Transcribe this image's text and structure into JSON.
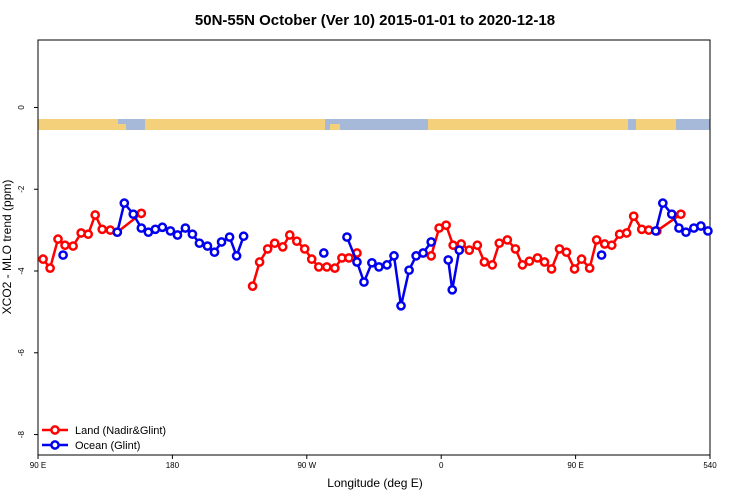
{
  "chart_data": {
    "type": "line",
    "title": "50N-55N October (Ver 10)   2015-01-01 to 2020-12-18",
    "x_label": "Longitude (deg E)",
    "y_label": "XCO2 - MLO trend (ppm)",
    "xlim": [
      90,
      540
    ],
    "ylim": [
      -8.5,
      1.65
    ],
    "xticks": [
      {
        "value": 90,
        "label": "90 E"
      },
      180,
      {
        "value": 270,
        "label": "90 W"
      },
      {
        "value": 360,
        "label": "0"
      },
      {
        "value": 450,
        "label": "90 E"
      },
      540
    ],
    "yticks": [
      0,
      -2,
      -4,
      -6,
      -8
    ],
    "grid": false,
    "legend": "bottom-left",
    "series": [
      {
        "name": "Land (Nadir&Glint)",
        "color": "#ff0000",
        "x": [
          93.4,
          98.1,
          103.4,
          108.1,
          113.5,
          118.9,
          123.6,
          128.3,
          133.0,
          138.4,
          143.1,
          159.2,
          null,
          233.7,
          238.4,
          243.8,
          248.5,
          253.9,
          258.6,
          263.3,
          268.6,
          273.3,
          278.0,
          283.4,
          288.8,
          293.5,
          298.2,
          303.6,
          null,
          353.3,
          358.6,
          363.3,
          368.0,
          373.4,
          378.8,
          384.2,
          388.9,
          394.2,
          398.9,
          404.3,
          409.7,
          414.4,
          419.1,
          424.5,
          429.2,
          433.9,
          439.2,
          443.9,
          449.3,
          454.0,
          459.4,
          464.1,
          469.5,
          474.2,
          479.5,
          484.2,
          488.9,
          494.3,
          499.0,
          504.4,
          520.5
        ],
        "values": [
          -3.71,
          -3.93,
          -3.22,
          -3.37,
          -3.39,
          -3.07,
          -3.1,
          -2.63,
          -2.98,
          -3.0,
          -3.05,
          -2.59,
          null,
          -4.37,
          -3.78,
          -3.46,
          -3.32,
          -3.41,
          -3.12,
          -3.27,
          -3.46,
          -3.71,
          -3.9,
          -3.9,
          -3.93,
          -3.68,
          -3.68,
          -3.56,
          null,
          -3.63,
          -2.95,
          -2.88,
          -3.37,
          -3.34,
          -3.49,
          -3.37,
          -3.78,
          -3.85,
          -3.32,
          -3.24,
          -3.46,
          -3.85,
          -3.76,
          -3.68,
          -3.78,
          -3.95,
          -3.46,
          -3.54,
          -3.95,
          -3.71,
          -3.93,
          -3.24,
          -3.34,
          -3.37,
          -3.1,
          -3.07,
          -2.66,
          -2.98,
          -3.0,
          -3.02,
          -2.61
        ]
      },
      {
        "name": "Ocean (Glint)",
        "color": "#0000ee",
        "x": [
          106.8,
          null,
          143.1,
          147.8,
          153.8,
          159.2,
          163.9,
          168.6,
          173.3,
          178.7,
          183.4,
          188.7,
          193.4,
          198.1,
          203.5,
          208.2,
          212.9,
          218.3,
          223.0,
          227.7,
          null,
          281.4,
          null,
          296.9,
          303.6,
          308.3,
          313.6,
          318.3,
          323.7,
          328.4,
          333.1,
          338.5,
          343.2,
          347.9,
          353.3,
          null,
          364.7,
          367.4,
          372.1,
          null,
          467.4,
          null,
          503.7,
          508.4,
          514.4,
          519.2,
          523.9,
          529.2,
          533.9,
          538.6
        ],
        "values": [
          -3.61,
          null,
          -3.05,
          -2.34,
          -2.61,
          -2.95,
          -3.05,
          -2.98,
          -2.93,
          -3.02,
          -3.12,
          -2.95,
          -3.1,
          -3.32,
          -3.39,
          -3.54,
          -3.29,
          -3.17,
          -3.63,
          -3.15,
          null,
          -3.56,
          null,
          -3.17,
          -3.78,
          -4.27,
          -3.8,
          -3.9,
          -3.85,
          -3.63,
          -4.85,
          -3.98,
          -3.63,
          -3.56,
          -3.29,
          null,
          -3.73,
          -4.46,
          -3.49,
          null,
          -3.61,
          null,
          -3.02,
          -2.34,
          -2.61,
          -2.95,
          -3.05,
          -2.95,
          -2.9,
          -3.02
        ]
      }
    ]
  }
}
